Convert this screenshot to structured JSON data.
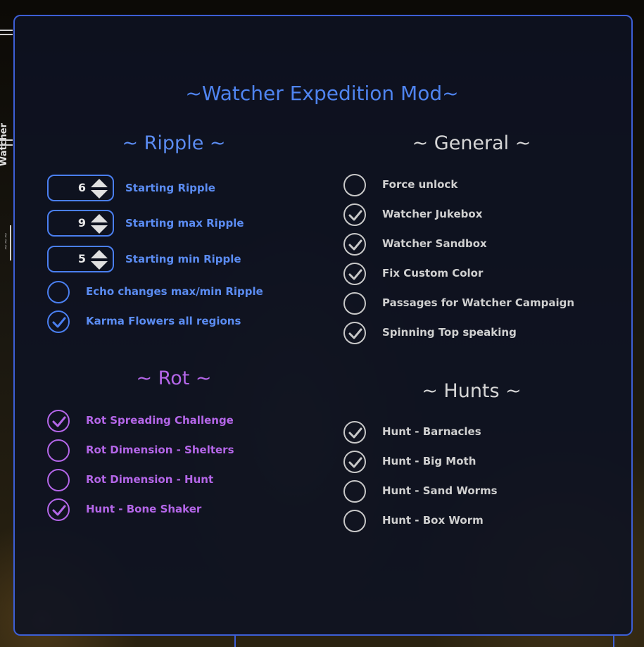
{
  "side_tab": {
    "label": "Watcher"
  },
  "title": "~Watcher Expedition Mod~",
  "colors": {
    "accent_blue": "#4f84f0",
    "accent_purple": "#b466e8",
    "neutral": "#d0d0d0",
    "panel_border": "#3d5fd6"
  },
  "ripple": {
    "title": "~ Ripple ~",
    "steppers": [
      {
        "value": "6",
        "label": "Starting Ripple"
      },
      {
        "value": "9",
        "label": "Starting max Ripple"
      },
      {
        "value": "5",
        "label": "Starting min Ripple"
      }
    ],
    "checkboxes": [
      {
        "label": "Echo changes max/min Ripple",
        "checked": false
      },
      {
        "label": "Karma Flowers all regions",
        "checked": true
      }
    ]
  },
  "rot": {
    "title": "~ Rot ~",
    "checkboxes": [
      {
        "label": "Rot Spreading Challenge",
        "checked": true
      },
      {
        "label": "Rot Dimension - Shelters",
        "checked": false
      },
      {
        "label": "Rot Dimension - Hunt",
        "checked": false
      },
      {
        "label": "Hunt - Bone Shaker",
        "checked": true
      }
    ]
  },
  "general": {
    "title": "~ General ~",
    "checkboxes": [
      {
        "label": "Force unlock",
        "checked": false
      },
      {
        "label": "Watcher Jukebox",
        "checked": true
      },
      {
        "label": "Watcher Sandbox",
        "checked": true
      },
      {
        "label": "Fix Custom Color",
        "checked": true
      },
      {
        "label": "Passages for Watcher Campaign",
        "checked": false
      },
      {
        "label": "Spinning Top speaking",
        "checked": true
      }
    ]
  },
  "hunts": {
    "title": "~ Hunts ~",
    "checkboxes": [
      {
        "label": "Hunt - Barnacles",
        "checked": true
      },
      {
        "label": "Hunt - Big Moth",
        "checked": true
      },
      {
        "label": "Hunt - Sand Worms",
        "checked": false
      },
      {
        "label": "Hunt - Box Worm",
        "checked": false
      }
    ]
  }
}
